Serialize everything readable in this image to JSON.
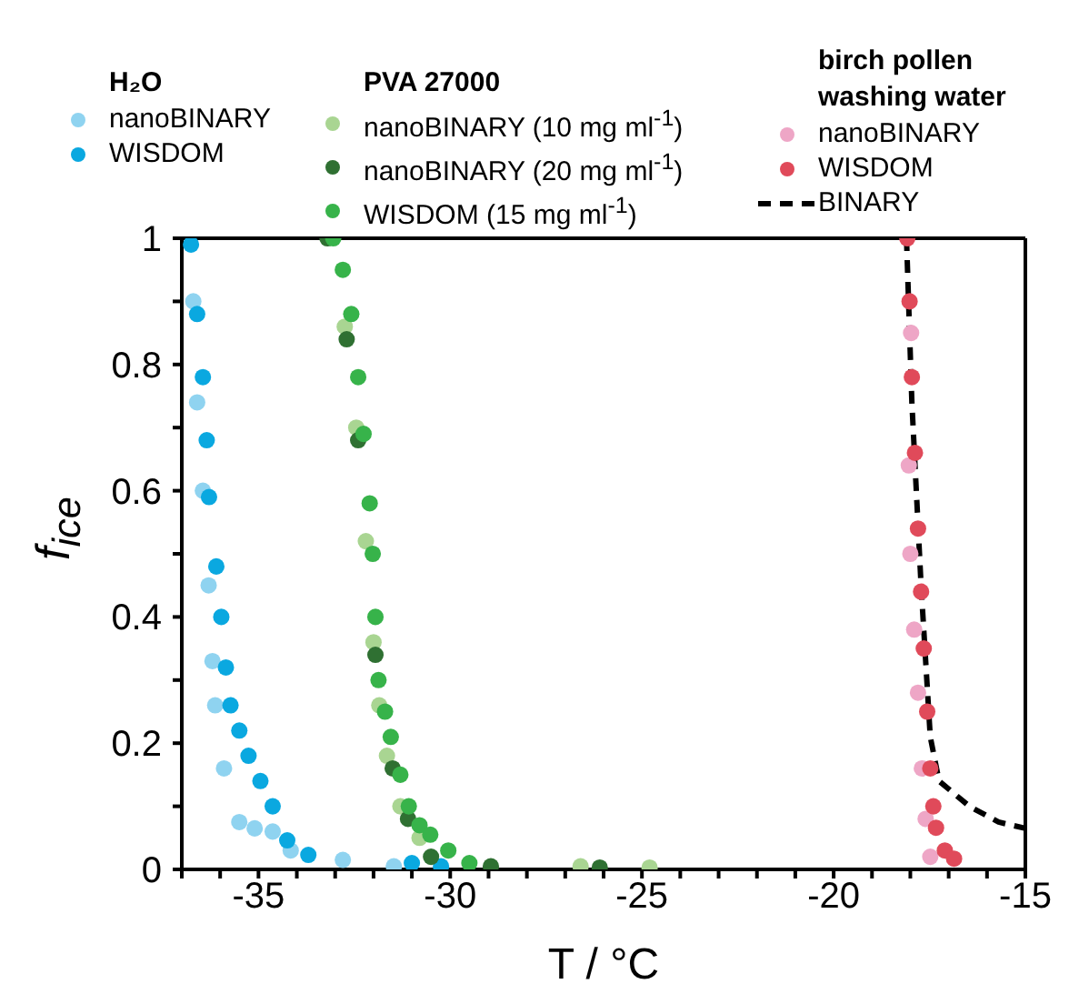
{
  "chart_data": {
    "type": "scatter",
    "xlabel": "T / °C",
    "ylabel": "f$_{ice}$",
    "legend": "top",
    "marker": "circle",
    "legend_title": [
      "H₂O",
      "PVA 27000",
      "birch pollen\nwashing water"
    ],
    "xlim": [
      -37,
      -15
    ],
    "ylim": [
      0,
      1
    ],
    "xticks": [
      {
        "value": -37,
        "label": null
      },
      {
        "value": -36,
        "label": null
      },
      -35,
      {
        "value": -34,
        "label": null
      },
      {
        "value": -33,
        "label": null
      },
      {
        "value": -32,
        "label": null
      },
      {
        "value": -31,
        "label": null
      },
      -30,
      {
        "value": -29,
        "label": null
      },
      {
        "value": -28,
        "label": null
      },
      {
        "value": -27,
        "label": null
      },
      {
        "value": -26,
        "label": null
      },
      -25,
      {
        "value": -24,
        "label": null
      },
      {
        "value": -23,
        "label": null
      },
      {
        "value": -22,
        "label": null
      },
      {
        "value": -21,
        "label": null
      },
      -20,
      {
        "value": -19,
        "label": null
      },
      {
        "value": -18,
        "label": null
      },
      {
        "value": -17,
        "label": null
      },
      {
        "value": -16,
        "label": null
      },
      -15
    ],
    "yticks": [
      0,
      {
        "value": 0.1,
        "label": null
      },
      0.2,
      {
        "value": 0.3,
        "label": null
      },
      0.4,
      {
        "value": 0.5,
        "label": null
      },
      0.6,
      {
        "value": 0.7,
        "label": null
      },
      0.8,
      {
        "value": 0.9,
        "label": null
      },
      1
    ],
    "series": [
      {
        "name": "nanoBINARY",
        "color": "#8fd3f0",
        "x": [
          -36.7,
          -36.6,
          -36.45,
          -36.3,
          -36.2,
          -36.13,
          -35.9,
          -35.5,
          -35.1,
          -34.63,
          -34.16,
          -32.8,
          -31.47
        ],
        "values": [
          0.9,
          0.74,
          0.6,
          0.45,
          0.33,
          0.26,
          0.16,
          0.075,
          0.065,
          0.06,
          0.03,
          0.015,
          0.005
        ]
      },
      {
        "name": "WISDOM",
        "color": "#0aa8e0",
        "x": [
          -36.76,
          -36.6,
          -36.45,
          -36.35,
          -36.29,
          -36.1,
          -35.97,
          -35.85,
          -35.73,
          -35.5,
          -35.26,
          -34.95,
          -34.63,
          -34.25,
          -33.7,
          -31.0,
          -30.24
        ],
        "values": [
          0.99,
          0.88,
          0.78,
          0.68,
          0.59,
          0.48,
          0.4,
          0.32,
          0.26,
          0.22,
          0.18,
          0.14,
          0.1,
          0.046,
          0.023,
          0.01,
          0.005
        ]
      },
      {
        "name": "nanoBINARY (10 mg ml$^{-1}$)",
        "color": "#a9d592",
        "x": [
          -32.75,
          -32.45,
          -32.2,
          -32.0,
          -31.85,
          -31.65,
          -31.3,
          -30.8,
          -26.6,
          -24.8
        ],
        "values": [
          0.86,
          0.7,
          0.52,
          0.36,
          0.26,
          0.18,
          0.1,
          0.05,
          0.005,
          0.003
        ]
      },
      {
        "name": "nanoBINARY (20 mg ml$^{-1}$)",
        "color": "#2f7032",
        "x": [
          -33.2,
          -32.7,
          -32.4,
          -31.95,
          -31.5,
          -31.1,
          -30.5,
          -28.94,
          -26.1
        ],
        "values": [
          1,
          0.84,
          0.68,
          0.34,
          0.16,
          0.08,
          0.02,
          0.005,
          0.003
        ]
      },
      {
        "name": "WISDOM (15 mg ml$^{-1}$)",
        "color": "#37b34a",
        "x": [
          -33.05,
          -32.8,
          -32.58,
          -32.4,
          -32.26,
          -32.1,
          -32.02,
          -31.95,
          -31.87,
          -31.7,
          -31.55,
          -31.3,
          -31.08,
          -30.8,
          -30.52,
          -30.05,
          -29.5
        ],
        "values": [
          1,
          0.95,
          0.88,
          0.78,
          0.69,
          0.58,
          0.5,
          0.4,
          0.3,
          0.25,
          0.21,
          0.15,
          0.1,
          0.07,
          0.055,
          0.03,
          0.01
        ]
      },
      {
        "name": "nanoBINARY",
        "color": "#eea6c6",
        "x": [
          -17.98,
          -18.04,
          -18.0,
          -17.9,
          -17.8,
          -17.7,
          -17.6,
          -17.48
        ],
        "values": [
          0.85,
          0.64,
          0.5,
          0.38,
          0.28,
          0.16,
          0.08,
          0.02
        ]
      },
      {
        "name": "WISDOM",
        "color": "#e04a5a",
        "x": [
          -18.08,
          -18.02,
          -17.96,
          -17.88,
          -17.8,
          -17.72,
          -17.65,
          -17.56,
          -17.48,
          -17.4,
          -17.33,
          -17.1,
          -16.86
        ],
        "values": [
          1,
          0.9,
          0.78,
          0.66,
          0.54,
          0.44,
          0.35,
          0.25,
          0.16,
          0.1,
          0.066,
          0.03,
          0.017
        ]
      },
      {
        "name": "BINARY",
        "type": "line",
        "marker": "none",
        "line_style": "dashed",
        "color": "#000000",
        "x": [
          -18.1,
          -17.96,
          -17.72,
          -17.48,
          -17.25,
          -16.46,
          -15.7,
          -15
        ],
        "values": [
          1,
          0.74,
          0.45,
          0.21,
          0.14,
          0.1,
          0.075,
          0.065
        ]
      }
    ]
  }
}
